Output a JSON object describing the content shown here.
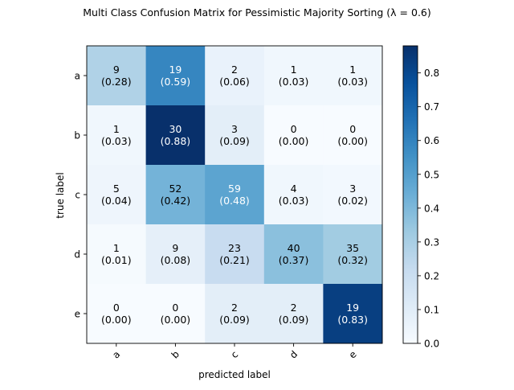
{
  "chart_data": {
    "type": "heatmap",
    "title": "Multi Class Confusion Matrix for Pessimistic Majority Sorting (λ = 0.6)",
    "xlabel": "predicted label",
    "ylabel": "true label",
    "x_categories": [
      "a",
      "b",
      "c",
      "d",
      "e"
    ],
    "y_categories": [
      "a",
      "b",
      "c",
      "d",
      "e"
    ],
    "counts": [
      [
        9,
        19,
        2,
        1,
        1
      ],
      [
        1,
        30,
        3,
        0,
        0
      ],
      [
        5,
        52,
        59,
        4,
        3
      ],
      [
        1,
        9,
        23,
        40,
        35
      ],
      [
        0,
        0,
        2,
        2,
        19
      ]
    ],
    "normalized_labels": [
      [
        "(0.28)",
        "(0.59)",
        "(0.06)",
        "(0.03)",
        "(0.03)"
      ],
      [
        "(0.03)",
        "(0.88)",
        "(0.09)",
        "(0.00)",
        "(0.00)"
      ],
      [
        "(0.04)",
        "(0.42)",
        "(0.48)",
        "(0.03)",
        "(0.02)"
      ],
      [
        "(0.01)",
        "(0.08)",
        "(0.21)",
        "(0.37)",
        "(0.32)"
      ],
      [
        "(0.00)",
        "(0.00)",
        "(0.09)",
        "(0.09)",
        "(0.83)"
      ]
    ],
    "normalized_values": [
      [
        0.28,
        0.59,
        0.06,
        0.03,
        0.03
      ],
      [
        0.03,
        0.88,
        0.09,
        0.0,
        0.0
      ],
      [
        0.04,
        0.42,
        0.48,
        0.03,
        0.02
      ],
      [
        0.01,
        0.08,
        0.21,
        0.37,
        0.32
      ],
      [
        0.0,
        0.0,
        0.09,
        0.09,
        0.83
      ]
    ],
    "colormap": "Blues",
    "colorbar": {
      "range": [
        0.0,
        0.88
      ],
      "ticks": [
        0.0,
        0.1,
        0.2,
        0.3,
        0.4,
        0.5,
        0.6,
        0.7,
        0.8
      ],
      "tick_labels": [
        "0.0",
        "0.1",
        "0.2",
        "0.3",
        "0.4",
        "0.5",
        "0.6",
        "0.7",
        "0.8"
      ]
    },
    "colors": {
      "low": "#f7fbff",
      "high": "#08306b",
      "text_dark": "#000000",
      "text_light": "#ffffff"
    }
  }
}
